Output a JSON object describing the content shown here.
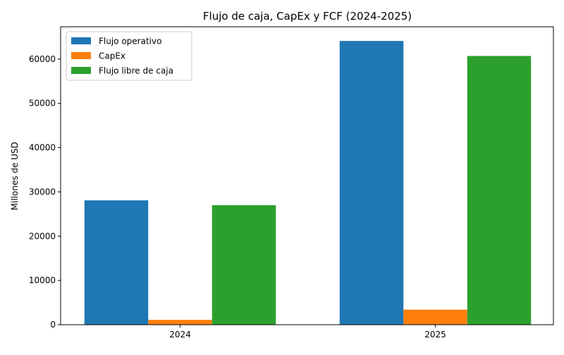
{
  "chart_data": {
    "type": "bar",
    "title": "Flujo de caja, CapEx y FCF (2024-2025)",
    "xlabel": "",
    "ylabel": "Millones de USD",
    "categories": [
      "2024",
      "2025"
    ],
    "series": [
      {
        "name": "Flujo operativo",
        "values": [
          28100,
          64100
        ],
        "color": "#1f77b4"
      },
      {
        "name": "CapEx",
        "values": [
          1100,
          3400
        ],
        "color": "#ff7f0e"
      },
      {
        "name": "Flujo libre de caja",
        "values": [
          27000,
          60700
        ],
        "color": "#2ca02c"
      }
    ],
    "ylim": [
      0,
      67300
    ],
    "yticks": [
      0,
      10000,
      20000,
      30000,
      40000,
      50000,
      60000
    ],
    "grid": false,
    "legend_position": "top-left"
  }
}
